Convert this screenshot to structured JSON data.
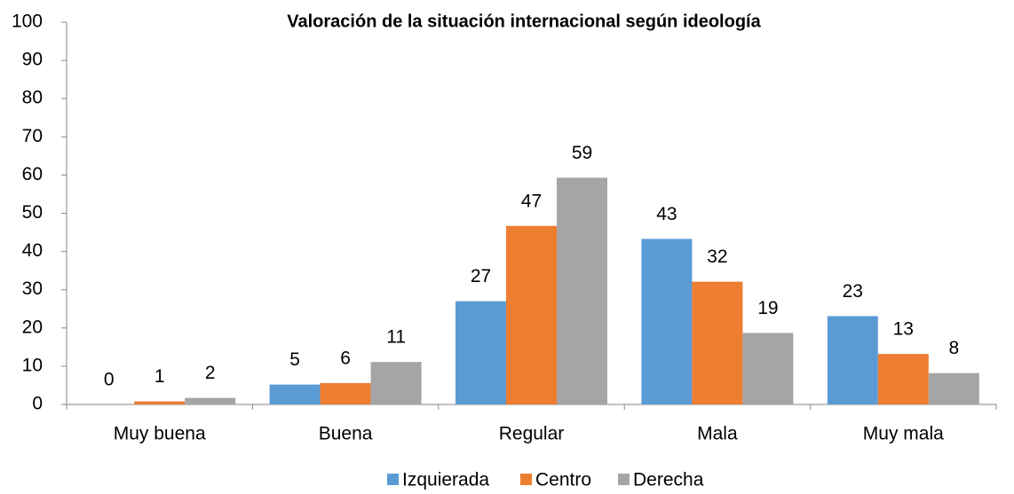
{
  "chart_data": {
    "type": "bar",
    "title": "Valoración de la situación internacional según ideología",
    "categories": [
      "Muy buena",
      "Buena",
      "Regular",
      "Mala",
      "Muy mala"
    ],
    "series": [
      {
        "name": "Izquierada",
        "color": "#5b9bd5",
        "values": [
          0,
          5.2,
          27,
          43.3,
          23.1
        ],
        "value_labels": [
          "0",
          "5",
          "27",
          "43",
          "23"
        ]
      },
      {
        "name": "Centro",
        "color": "#ed7d31",
        "values": [
          0.8,
          5.6,
          46.7,
          32.1,
          13.2
        ],
        "value_labels": [
          "1",
          "6",
          "47",
          "32",
          "13"
        ]
      },
      {
        "name": "Derecha",
        "color": "#a5a5a5",
        "values": [
          1.7,
          11.1,
          59.3,
          18.7,
          8.2
        ],
        "value_labels": [
          "2",
          "11",
          "59",
          "19",
          "8"
        ]
      }
    ],
    "ylim": [
      0,
      100
    ],
    "yticks": [
      0,
      10,
      20,
      30,
      40,
      50,
      60,
      70,
      80,
      90,
      100
    ],
    "grid": false,
    "legend": "bottom"
  }
}
